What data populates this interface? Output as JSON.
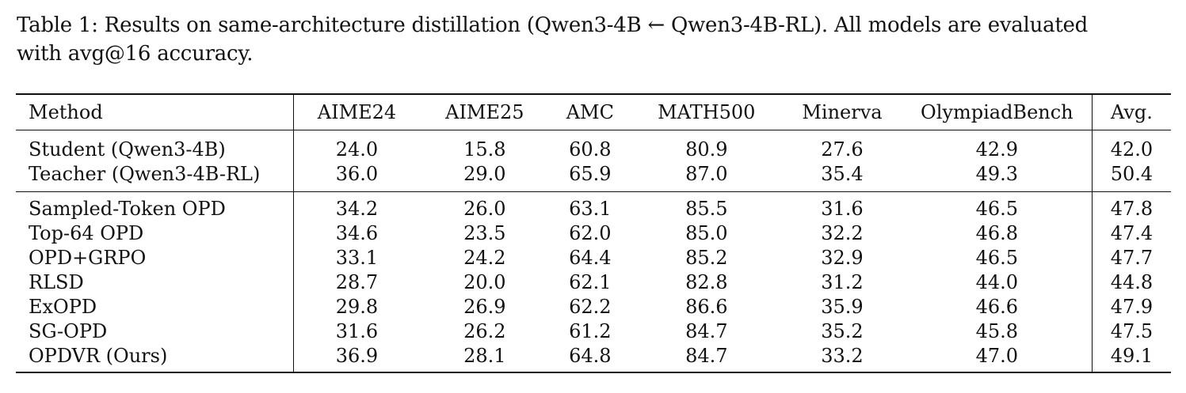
{
  "caption": {
    "line1": "Table 1: Results on same-architecture distillation (Qwen3-4B ← Qwen3-4B-RL). All models are evaluated",
    "line2": "with avg@16 accuracy."
  },
  "headers": [
    "Method",
    "AIME24",
    "AIME25",
    "AMC",
    "MATH500",
    "Minerva",
    "OlympiadBench",
    "Avg."
  ],
  "groups": [
    [
      {
        "method": "Student (Qwen3-4B)",
        "values": [
          "24.0",
          "15.8",
          "60.8",
          "80.9",
          "27.6",
          "42.9",
          "42.0"
        ],
        "bold": []
      },
      {
        "method": "Teacher (Qwen3-4B-RL)",
        "values": [
          "36.0",
          "29.0",
          "65.9",
          "87.0",
          "35.4",
          "49.3",
          "50.4"
        ],
        "bold": []
      }
    ],
    [
      {
        "method": "Sampled-Token OPD",
        "values": [
          "34.2",
          "26.0",
          "63.1",
          "85.5",
          "31.6",
          "46.5",
          "47.8"
        ],
        "bold": []
      },
      {
        "method": "Top-64 OPD",
        "values": [
          "34.6",
          "23.5",
          "62.0",
          "85.0",
          "32.2",
          "46.8",
          "47.4"
        ],
        "bold": []
      },
      {
        "method": "OPD+GRPO",
        "values": [
          "33.1",
          "24.2",
          "64.4",
          "85.2",
          "32.9",
          "46.5",
          "47.7"
        ],
        "bold": []
      },
      {
        "method": "RLSD",
        "values": [
          "28.7",
          "20.0",
          "62.1",
          "82.8",
          "31.2",
          "44.0",
          "44.8"
        ],
        "bold": []
      },
      {
        "method": "ExOPD",
        "values": [
          "29.8",
          "26.9",
          "62.2",
          "86.6",
          "35.9",
          "46.6",
          "47.9"
        ],
        "bold": [
          3,
          4
        ]
      },
      {
        "method": "SG-OPD",
        "values": [
          "31.6",
          "26.2",
          "61.2",
          "84.7",
          "35.2",
          "45.8",
          "47.5"
        ],
        "bold": []
      },
      {
        "method": "OPDVR (Ours)",
        "values": [
          "36.9",
          "28.1",
          "64.8",
          "84.7",
          "33.2",
          "47.0",
          "49.1"
        ],
        "bold": [
          "method",
          0,
          1,
          2,
          5,
          6
        ]
      }
    ]
  ]
}
